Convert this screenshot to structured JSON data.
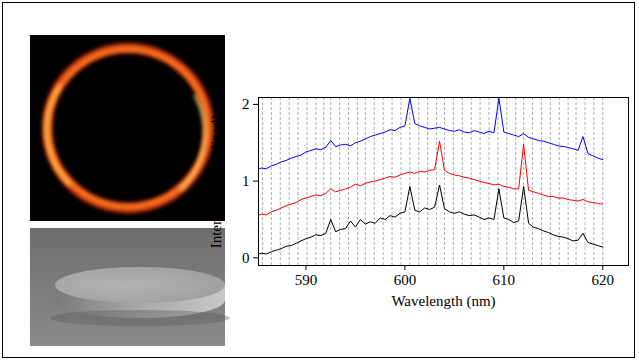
{
  "chart_data": {
    "type": "line",
    "x_label": "Wavelength (nm)",
    "y_label": "Intensity (normalized)",
    "xlim": [
      585.2,
      622.6
    ],
    "xticks": [
      590,
      600,
      610,
      620
    ],
    "ylim": [
      -0.1,
      2.09
    ],
    "yticks": [
      0,
      1,
      2
    ],
    "reference_lines": [
      585.6,
      586.5,
      587.4,
      588.3,
      589.2,
      590.1,
      591.0,
      591.8,
      592.5,
      593.4,
      594.3,
      595.2,
      596.0,
      596.9,
      597.8,
      598.7,
      599.6,
      600.5,
      601.4,
      602.3,
      603.2,
      604.0,
      604.9,
      605.8,
      606.7,
      607.6,
      608.5,
      609.4,
      610.3,
      611.2,
      612.0,
      612.9,
      613.8,
      614.7,
      615.6,
      616.5,
      617.3,
      618.2,
      619.1,
      620.0
    ],
    "x": [
      585.0,
      585.5,
      586.0,
      586.5,
      587.0,
      587.5,
      588.0,
      588.5,
      589.0,
      589.5,
      590.0,
      590.5,
      591.0,
      591.5,
      592.0,
      592.5,
      593.0,
      593.5,
      594.0,
      594.5,
      595.0,
      595.5,
      596.0,
      596.5,
      597.0,
      597.5,
      598.0,
      598.5,
      599.0,
      599.5,
      600.0,
      600.5,
      601.0,
      601.5,
      602.0,
      602.5,
      603.0,
      603.5,
      604.0,
      604.5,
      605.0,
      605.5,
      606.0,
      606.5,
      607.0,
      607.5,
      608.0,
      608.5,
      609.0,
      609.5,
      610.0,
      610.5,
      611.0,
      611.5,
      612.0,
      612.5,
      613.0,
      613.5,
      614.0,
      614.5,
      615.0,
      615.5,
      616.0,
      616.5,
      617.0,
      617.5,
      618.0,
      618.5,
      619.0,
      619.5,
      620.0
    ],
    "series": [
      {
        "color": "#0000ff",
        "values": [
          1.15,
          1.17,
          1.16,
          1.2,
          1.22,
          1.25,
          1.27,
          1.3,
          1.32,
          1.34,
          1.38,
          1.4,
          1.42,
          1.41,
          1.44,
          1.53,
          1.45,
          1.47,
          1.48,
          1.46,
          1.5,
          1.52,
          1.55,
          1.58,
          1.6,
          1.62,
          1.64,
          1.67,
          1.66,
          1.7,
          1.72,
          2.08,
          1.75,
          1.72,
          1.7,
          1.68,
          1.69,
          1.7,
          1.68,
          1.66,
          1.65,
          1.67,
          1.64,
          1.63,
          1.66,
          1.64,
          1.62,
          1.65,
          1.63,
          2.08,
          1.64,
          1.62,
          1.6,
          1.58,
          1.62,
          1.57,
          1.55,
          1.53,
          1.52,
          1.5,
          1.48,
          1.46,
          1.45,
          1.44,
          1.42,
          1.4,
          1.58,
          1.36,
          1.33,
          1.3,
          1.28
        ]
      },
      {
        "color": "#ff0000",
        "values": [
          0.55,
          0.57,
          0.56,
          0.6,
          0.62,
          0.65,
          0.68,
          0.7,
          0.72,
          0.76,
          0.78,
          0.8,
          0.82,
          0.81,
          0.84,
          0.9,
          0.86,
          0.88,
          0.9,
          0.92,
          0.96,
          0.94,
          0.97,
          0.99,
          1.0,
          1.02,
          1.04,
          1.06,
          1.05,
          1.08,
          1.1,
          1.12,
          1.1,
          1.13,
          1.12,
          1.14,
          1.15,
          1.52,
          1.14,
          1.1,
          1.08,
          1.07,
          1.05,
          1.04,
          1.02,
          1.0,
          0.98,
          0.97,
          0.95,
          0.96,
          0.93,
          0.92,
          0.9,
          0.9,
          1.48,
          0.88,
          0.86,
          0.84,
          0.82,
          0.8,
          0.8,
          0.78,
          0.78,
          0.76,
          0.75,
          0.74,
          0.76,
          0.73,
          0.72,
          0.71,
          0.7
        ]
      },
      {
        "color": "#000000",
        "values": [
          0.04,
          0.06,
          0.05,
          0.08,
          0.1,
          0.12,
          0.15,
          0.16,
          0.19,
          0.22,
          0.25,
          0.27,
          0.3,
          0.29,
          0.32,
          0.5,
          0.34,
          0.37,
          0.38,
          0.48,
          0.4,
          0.5,
          0.44,
          0.47,
          0.45,
          0.52,
          0.5,
          0.55,
          0.53,
          0.58,
          0.6,
          0.93,
          0.62,
          0.6,
          0.65,
          0.63,
          0.66,
          0.95,
          0.64,
          0.6,
          0.58,
          0.6,
          0.57,
          0.55,
          0.56,
          0.53,
          0.5,
          0.52,
          0.5,
          0.9,
          0.52,
          0.5,
          0.46,
          0.48,
          0.93,
          0.45,
          0.4,
          0.38,
          0.35,
          0.33,
          0.3,
          0.28,
          0.27,
          0.25,
          0.22,
          0.23,
          0.32,
          0.2,
          0.18,
          0.16,
          0.14
        ]
      }
    ]
  }
}
